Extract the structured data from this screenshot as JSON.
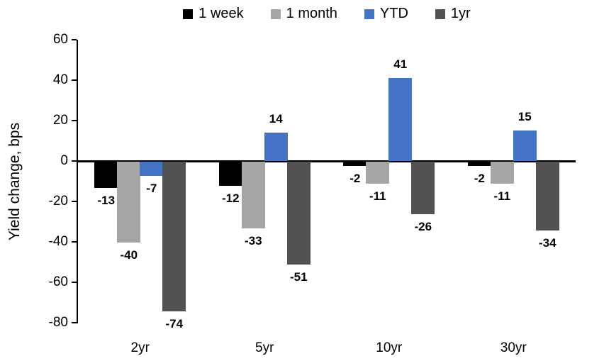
{
  "chart_data": {
    "type": "bar",
    "title": "",
    "ylabel": "Yield change, bps",
    "xlabel": "",
    "categories": [
      "2yr",
      "5yr",
      "10yr",
      "30yr"
    ],
    "series": [
      {
        "name": "1 week",
        "color": "#000000",
        "values": [
          -13,
          -12,
          -2,
          -2
        ]
      },
      {
        "name": "1 month",
        "color": "#A6A6A6",
        "values": [
          -40,
          -33,
          -11,
          -11
        ]
      },
      {
        "name": "YTD",
        "color": "#4472C4",
        "values": [
          -7,
          14,
          41,
          15
        ]
      },
      {
        "name": "1yr",
        "color": "#525252",
        "values": [
          -74,
          -51,
          -26,
          -34
        ]
      }
    ],
    "ylim": [
      -80,
      60
    ],
    "yticks": [
      60,
      40,
      20,
      0,
      -20,
      -40,
      -60,
      -80
    ],
    "grid": false,
    "legend_position": "top",
    "data_labels": true,
    "axis_color": "#000000"
  }
}
